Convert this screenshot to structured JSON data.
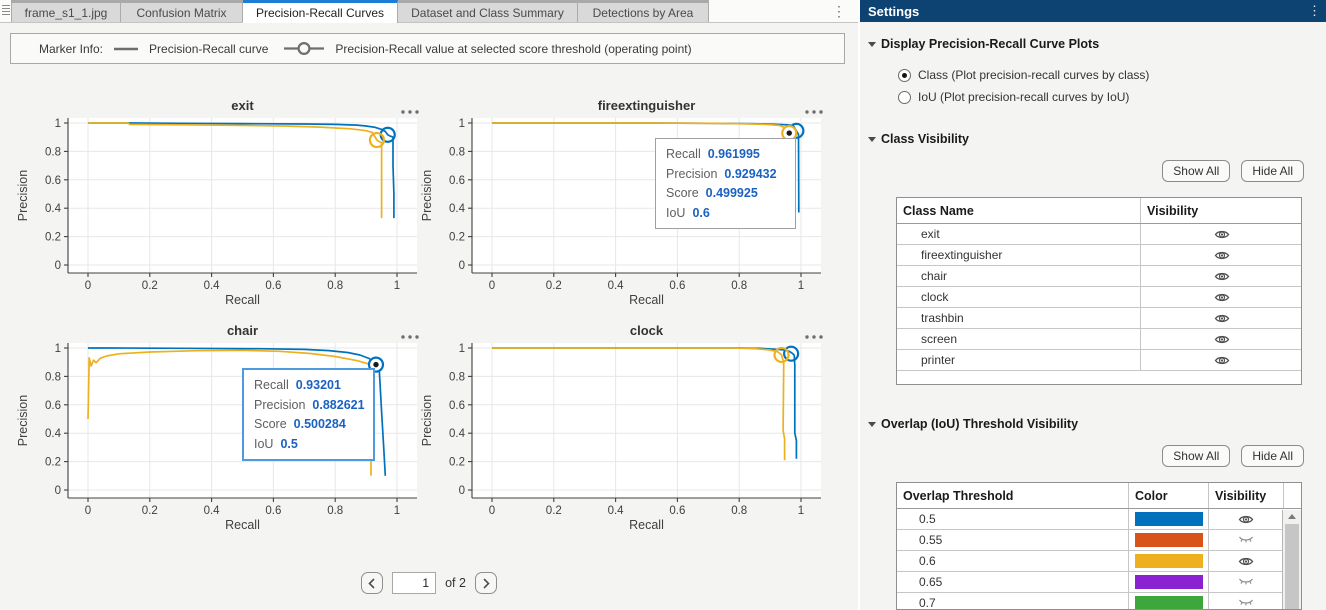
{
  "tabs": {
    "active_index": 2,
    "overflow_icon": "⋮",
    "items": [
      {
        "label": "frame_s1_1.jpg"
      },
      {
        "label": "Confusion Matrix"
      },
      {
        "label": "Precision-Recall Curves"
      },
      {
        "label": "Dataset and Class Summary"
      },
      {
        "label": "Detections by Area"
      }
    ]
  },
  "marker_legend": {
    "prefix": "Marker Info:",
    "curve_label": "Precision-Recall curve",
    "operating_point_label": "Precision-Recall value at selected score threshold (operating point)"
  },
  "pagination": {
    "current_page": "1",
    "of_label": "of 2"
  },
  "settings": {
    "title": "Settings",
    "menu_icon": "⋮",
    "display_section": {
      "title": "Display Precision-Recall Curve Plots",
      "options": [
        {
          "label": "Class (Plot precision-recall curves by class)",
          "selected": true
        },
        {
          "label": "IoU (Plot precision-recall curves by IoU)",
          "selected": false
        }
      ]
    },
    "class_visibility": {
      "title": "Class Visibility",
      "show_all_label": "Show All",
      "hide_all_label": "Hide All",
      "columns": [
        "Class Name",
        "Visibility"
      ],
      "rows": [
        {
          "name": "exit",
          "visible": true
        },
        {
          "name": "fireextinguisher",
          "visible": true
        },
        {
          "name": "chair",
          "visible": true
        },
        {
          "name": "clock",
          "visible": true
        },
        {
          "name": "trashbin",
          "visible": true
        },
        {
          "name": "screen",
          "visible": true
        },
        {
          "name": "printer",
          "visible": true
        }
      ]
    },
    "iou_visibility": {
      "title": "Overlap (IoU) Threshold Visibility",
      "show_all_label": "Show All",
      "hide_all_label": "Hide All",
      "columns": [
        "Overlap Threshold",
        "Color",
        "Visibility"
      ],
      "rows": [
        {
          "threshold": "0.5",
          "color": "#0072BD",
          "visible": true
        },
        {
          "threshold": "0.55",
          "color": "#D95319",
          "visible": false
        },
        {
          "threshold": "0.6",
          "color": "#EDB120",
          "visible": true
        },
        {
          "threshold": "0.65",
          "color": "#8A22D1",
          "visible": false
        },
        {
          "threshold": "0.7",
          "color": "#3DA63D",
          "visible": false
        }
      ]
    }
  },
  "colors": {
    "active_tab_accent": "#1C7CD6",
    "settings_header": "#0D4372",
    "iou05_curve": "#0072BD",
    "iou06_curve": "#EDB120",
    "tooltip_value": "#1A62C2"
  },
  "chart_data": [
    {
      "type": "line",
      "title": "exit",
      "xlabel": "Recall",
      "ylabel": "Precision",
      "xlim": [
        -0.05,
        1.05
      ],
      "ylim": [
        -0.05,
        1.05
      ],
      "grid": true,
      "xticks": [
        0,
        0.2,
        0.4,
        0.6,
        0.8,
        1
      ],
      "yticks": [
        0,
        0.2,
        0.4,
        0.6,
        0.8,
        1
      ],
      "series": [
        {
          "name": "IoU 0.5",
          "color": "#0072BD",
          "points": [
            [
              0,
              1
            ],
            [
              0.13,
              1
            ],
            [
              0.3,
              0.998
            ],
            [
              0.5,
              0.996
            ],
            [
              0.7,
              0.993
            ],
            [
              0.8,
              0.99
            ],
            [
              0.87,
              0.985
            ],
            [
              0.9,
              0.979
            ],
            [
              0.93,
              0.969
            ],
            [
              0.95,
              0.955
            ],
            [
              0.962,
              0.94
            ],
            [
              0.97,
              0.917
            ],
            [
              0.978,
              0.908
            ],
            [
              0.987,
              0.9
            ],
            [
              0.987,
              0.7
            ],
            [
              0.99,
              0.5
            ],
            [
              0.99,
              0.33
            ]
          ],
          "operating_point": {
            "recall": 0.97,
            "precision": 0.917,
            "selected": false
          }
        },
        {
          "name": "IoU 0.6",
          "color": "#EDB120",
          "points": [
            [
              0,
              1
            ],
            [
              0.13,
              1
            ],
            [
              0.135,
              0.99
            ],
            [
              0.3,
              0.987
            ],
            [
              0.5,
              0.983
            ],
            [
              0.65,
              0.978
            ],
            [
              0.75,
              0.971
            ],
            [
              0.85,
              0.959
            ],
            [
              0.9,
              0.946
            ],
            [
              0.92,
              0.934
            ],
            [
              0.935,
              0.88
            ],
            [
              0.943,
              0.868
            ],
            [
              0.95,
              0.862
            ],
            [
              0.95,
              0.33
            ]
          ],
          "operating_point": {
            "recall": 0.935,
            "precision": 0.88,
            "selected": false
          }
        }
      ],
      "tooltip": null
    },
    {
      "type": "line",
      "title": "fireextinguisher",
      "xlabel": "Recall",
      "ylabel": "Precision",
      "xlim": [
        -0.05,
        1.05
      ],
      "ylim": [
        -0.05,
        1.05
      ],
      "grid": true,
      "xticks": [
        0,
        0.2,
        0.4,
        0.6,
        0.8,
        1
      ],
      "yticks": [
        0,
        0.2,
        0.4,
        0.6,
        0.8,
        1
      ],
      "series": [
        {
          "name": "IoU 0.5",
          "color": "#0072BD",
          "points": [
            [
              0,
              1
            ],
            [
              0.5,
              1
            ],
            [
              0.7,
              0.998
            ],
            [
              0.85,
              0.995
            ],
            [
              0.92,
              0.991
            ],
            [
              0.955,
              0.987
            ],
            [
              0.975,
              0.982
            ],
            [
              0.985,
              0.945
            ],
            [
              0.992,
              0.92
            ],
            [
              0.993,
              0.37
            ]
          ],
          "operating_point": {
            "recall": 0.985,
            "precision": 0.945,
            "selected": false
          }
        },
        {
          "name": "IoU 0.6",
          "color": "#EDB120",
          "points": [
            [
              0,
              1
            ],
            [
              0.5,
              1
            ],
            [
              0.75,
              0.997
            ],
            [
              0.88,
              0.991
            ],
            [
              0.93,
              0.983
            ],
            [
              0.953,
              0.962
            ],
            [
              0.962,
              0.929
            ],
            [
              0.967,
              0.9
            ],
            [
              0.967,
              0.38
            ]
          ],
          "operating_point": {
            "recall": 0.962,
            "precision": 0.929,
            "selected": true
          }
        }
      ],
      "tooltip": {
        "style": "gray",
        "rows": [
          [
            "Recall",
            "0.961995"
          ],
          [
            "Precision",
            "0.929432"
          ],
          [
            "Score",
            "0.499925"
          ],
          [
            "IoU",
            "0.6"
          ]
        ]
      }
    },
    {
      "type": "line",
      "title": "chair",
      "xlabel": "Recall",
      "ylabel": "Precision",
      "xlim": [
        -0.05,
        1.05
      ],
      "ylim": [
        -0.05,
        1.05
      ],
      "grid": true,
      "xticks": [
        0,
        0.2,
        0.4,
        0.6,
        0.8,
        1
      ],
      "yticks": [
        0,
        0.2,
        0.4,
        0.6,
        0.8,
        1
      ],
      "series": [
        {
          "name": "IoU 0.5",
          "color": "#0072BD",
          "points": [
            [
              0,
              1
            ],
            [
              0.06,
              1
            ],
            [
              0.3,
              0.998
            ],
            [
              0.55,
              0.995
            ],
            [
              0.7,
              0.99
            ],
            [
              0.78,
              0.982
            ],
            [
              0.84,
              0.968
            ],
            [
              0.88,
              0.951
            ],
            [
              0.91,
              0.926
            ],
            [
              0.932,
              0.883
            ],
            [
              0.942,
              0.868
            ],
            [
              0.95,
              0.55
            ],
            [
              0.957,
              0.3
            ],
            [
              0.962,
              0.1
            ]
          ],
          "operating_point": {
            "recall": 0.932,
            "precision": 0.883,
            "selected": true
          }
        },
        {
          "name": "IoU 0.6",
          "color": "#EDB120",
          "points": [
            [
              0,
              0.5
            ],
            [
              0.004,
              0.93
            ],
            [
              0.01,
              0.873
            ],
            [
              0.018,
              0.915
            ],
            [
              0.026,
              0.896
            ],
            [
              0.04,
              0.928
            ],
            [
              0.06,
              0.944
            ],
            [
              0.1,
              0.959
            ],
            [
              0.2,
              0.972
            ],
            [
              0.35,
              0.981
            ],
            [
              0.5,
              0.984
            ],
            [
              0.62,
              0.977
            ],
            [
              0.72,
              0.961
            ],
            [
              0.8,
              0.94
            ],
            [
              0.87,
              0.911
            ],
            [
              0.9,
              0.893
            ],
            [
              0.912,
              0.886
            ],
            [
              0.916,
              0.5
            ],
            [
              0.916,
              0.1
            ]
          ],
          "operating_point": null
        }
      ],
      "tooltip": {
        "style": "blue",
        "rows": [
          [
            "Recall",
            "0.93201"
          ],
          [
            "Precision",
            "0.882621"
          ],
          [
            "Score",
            "0.500284"
          ],
          [
            "IoU",
            "0.5"
          ]
        ]
      }
    },
    {
      "type": "line",
      "title": "clock",
      "xlabel": "Recall",
      "ylabel": "Precision",
      "xlim": [
        -0.05,
        1.05
      ],
      "ylim": [
        -0.05,
        1.05
      ],
      "grid": true,
      "xticks": [
        0,
        0.2,
        0.4,
        0.6,
        0.8,
        1
      ],
      "yticks": [
        0,
        0.2,
        0.4,
        0.6,
        0.8,
        1
      ],
      "series": [
        {
          "name": "IoU 0.5",
          "color": "#0072BD",
          "points": [
            [
              0,
              1
            ],
            [
              0.8,
              1
            ],
            [
              0.87,
              0.997
            ],
            [
              0.92,
              0.991
            ],
            [
              0.95,
              0.986
            ],
            [
              0.962,
              0.976
            ],
            [
              0.972,
              0.963
            ],
            [
              0.978,
              0.95
            ],
            [
              0.98,
              0.88
            ],
            [
              0.98,
              0.4
            ],
            [
              0.985,
              0.35
            ],
            [
              0.985,
              0.22
            ]
          ],
          "operating_point": {
            "recall": 0.968,
            "precision": 0.96,
            "selected": false
          }
        },
        {
          "name": "IoU 0.6",
          "color": "#EDB120",
          "points": [
            [
              0,
              1
            ],
            [
              0.78,
              1
            ],
            [
              0.85,
              0.996
            ],
            [
              0.9,
              0.986
            ],
            [
              0.925,
              0.973
            ],
            [
              0.937,
              0.952
            ],
            [
              0.944,
              0.9
            ],
            [
              0.944,
              0.86
            ],
            [
              0.942,
              0.42
            ],
            [
              0.947,
              0.36
            ],
            [
              0.947,
              0.21
            ]
          ],
          "operating_point": {
            "recall": 0.937,
            "precision": 0.951,
            "selected": false
          }
        }
      ],
      "tooltip": null
    }
  ]
}
